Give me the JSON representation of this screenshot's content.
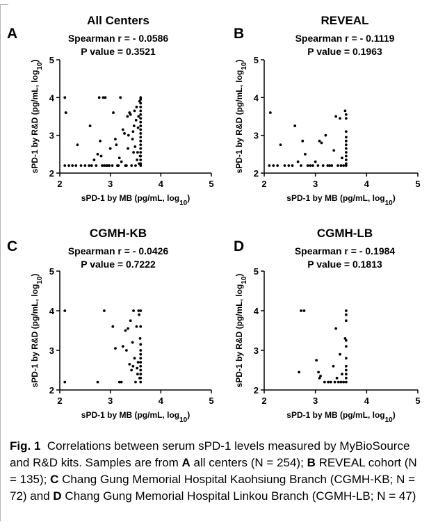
{
  "panels": [
    {
      "letter": "A",
      "title": "All Centers",
      "stat": "Spearman r = - 0.0586",
      "pvalue": "P value = 0.3521"
    },
    {
      "letter": "B",
      "title": "REVEAL",
      "stat": "Spearman r = - 0.1119",
      "pvalue": "P value = 0.1963"
    },
    {
      "letter": "C",
      "title": "CGMH-KB",
      "stat": "Spearman r = - 0.0426",
      "pvalue": "P value = 0.7222"
    },
    {
      "letter": "D",
      "title": "CGMH-LB",
      "stat": "Spearman r = - 0.1984",
      "pvalue": "P value = 0.1813"
    }
  ],
  "caption": {
    "label": "Fig. 1",
    "intro": "Correlations between serum sPD-1 levels measured by MyBioSource and R&D kits. Samples are from",
    "parts": [
      {
        "letter": "A",
        "text": " all centers (N = 254);"
      },
      {
        "letter": "B",
        "text": " REVEAL cohort (N = 135);"
      },
      {
        "letter": "C",
        "text": " Chang Gung Memorial Hospital Kaohsiung Branch (CGMH-KB; N = 72) and"
      },
      {
        "letter": "D",
        "text": " Chang Gung Memorial Hospital Linkou Branch (CGMH-LB; N = 47)"
      }
    ]
  },
  "chart_data": [
    {
      "type": "scatter",
      "title": "All Centers",
      "annotations": [
        "Spearman r = - 0.0586",
        "P value = 0.3521"
      ],
      "xlabel": "sPD-1 by MB (pg/mL, log10)",
      "ylabel": "sPD-1 by R&D (pg/mL, log10)",
      "xlim": [
        2,
        5
      ],
      "ylim": [
        2,
        5
      ],
      "xticks": [
        "2",
        "3",
        "4",
        "5"
      ],
      "yticks": [
        "2",
        "3",
        "4",
        "5"
      ],
      "points": [
        [
          2.1,
          4.0
        ],
        [
          2.12,
          3.6
        ],
        [
          2.1,
          2.2
        ],
        [
          2.18,
          2.2
        ],
        [
          2.25,
          2.2
        ],
        [
          2.32,
          2.2
        ],
        [
          2.35,
          2.75
        ],
        [
          2.42,
          2.2
        ],
        [
          2.5,
          2.2
        ],
        [
          2.58,
          2.2
        ],
        [
          2.6,
          3.25
        ],
        [
          2.63,
          2.2
        ],
        [
          2.68,
          2.35
        ],
        [
          2.72,
          2.2
        ],
        [
          2.75,
          2.5
        ],
        [
          2.78,
          4.0
        ],
        [
          2.8,
          2.85
        ],
        [
          2.82,
          2.45
        ],
        [
          2.84,
          2.2
        ],
        [
          2.86,
          4.0
        ],
        [
          2.88,
          2.2
        ],
        [
          2.9,
          4.0
        ],
        [
          2.92,
          2.2
        ],
        [
          2.95,
          2.2
        ],
        [
          2.98,
          2.2
        ],
        [
          3.0,
          2.65
        ],
        [
          3.04,
          2.2
        ],
        [
          3.06,
          3.6
        ],
        [
          3.1,
          2.9
        ],
        [
          3.12,
          2.75
        ],
        [
          3.14,
          2.2
        ],
        [
          3.16,
          2.2
        ],
        [
          3.18,
          2.4
        ],
        [
          3.2,
          4.0
        ],
        [
          3.22,
          2.3
        ],
        [
          3.25,
          3.15
        ],
        [
          3.28,
          3.05
        ],
        [
          3.3,
          2.2
        ],
        [
          3.32,
          2.2
        ],
        [
          3.34,
          3.5
        ],
        [
          3.35,
          2.65
        ],
        [
          3.36,
          3.0
        ],
        [
          3.38,
          3.6
        ],
        [
          3.4,
          3.55
        ],
        [
          3.42,
          2.2
        ],
        [
          3.44,
          2.9
        ],
        [
          3.45,
          3.1
        ],
        [
          3.46,
          2.55
        ],
        [
          3.47,
          3.25
        ],
        [
          3.48,
          3.65
        ],
        [
          3.49,
          2.7
        ],
        [
          3.5,
          2.2
        ],
        [
          3.51,
          3.4
        ],
        [
          3.52,
          3.75
        ],
        [
          3.53,
          2.35
        ],
        [
          3.54,
          2.55
        ],
        [
          3.55,
          3.2
        ],
        [
          3.56,
          3.5
        ],
        [
          3.57,
          2.25
        ],
        [
          3.58,
          3.9
        ],
        [
          3.59,
          2.45
        ],
        [
          3.6,
          4.0
        ],
        [
          3.6,
          3.95
        ],
        [
          3.6,
          3.85
        ],
        [
          3.6,
          3.75
        ],
        [
          3.6,
          3.65
        ],
        [
          3.6,
          3.55
        ],
        [
          3.6,
          3.45
        ],
        [
          3.6,
          3.35
        ],
        [
          3.6,
          3.25
        ],
        [
          3.6,
          3.15
        ],
        [
          3.6,
          3.05
        ],
        [
          3.6,
          2.95
        ],
        [
          3.6,
          2.85
        ],
        [
          3.6,
          2.75
        ],
        [
          3.6,
          2.65
        ],
        [
          3.6,
          2.55
        ],
        [
          3.6,
          2.45
        ],
        [
          3.6,
          2.35
        ],
        [
          3.6,
          2.25
        ],
        [
          3.6,
          2.2
        ]
      ]
    },
    {
      "type": "scatter",
      "title": "REVEAL",
      "annotations": [
        "Spearman r = - 0.1119",
        "P value = 0.1963"
      ],
      "xlabel": "sPD-1 by MB (pg/mL, log10)",
      "ylabel": "sPD-1 by R&D (pg/mL, log10)",
      "xlim": [
        2,
        5
      ],
      "ylim": [
        2,
        5
      ],
      "xticks": [
        "2",
        "3",
        "4",
        "5"
      ],
      "yticks": [
        "2",
        "3",
        "4",
        "5"
      ],
      "points": [
        [
          2.12,
          3.6
        ],
        [
          2.1,
          2.2
        ],
        [
          2.18,
          2.2
        ],
        [
          2.26,
          2.2
        ],
        [
          2.32,
          2.75
        ],
        [
          2.4,
          2.2
        ],
        [
          2.48,
          2.2
        ],
        [
          2.55,
          2.2
        ],
        [
          2.6,
          3.25
        ],
        [
          2.66,
          2.3
        ],
        [
          2.72,
          2.2
        ],
        [
          2.75,
          2.85
        ],
        [
          2.8,
          2.5
        ],
        [
          2.85,
          2.2
        ],
        [
          2.9,
          2.2
        ],
        [
          2.95,
          2.2
        ],
        [
          3.0,
          2.3
        ],
        [
          3.05,
          2.2
        ],
        [
          3.08,
          2.85
        ],
        [
          3.12,
          2.8
        ],
        [
          3.15,
          2.2
        ],
        [
          3.2,
          3.0
        ],
        [
          3.24,
          2.2
        ],
        [
          3.28,
          2.2
        ],
        [
          3.32,
          2.2
        ],
        [
          3.36,
          2.6
        ],
        [
          3.4,
          3.5
        ],
        [
          3.44,
          2.2
        ],
        [
          3.48,
          3.45
        ],
        [
          3.5,
          2.2
        ],
        [
          3.52,
          2.4
        ],
        [
          3.55,
          2.2
        ],
        [
          3.58,
          3.65
        ],
        [
          3.6,
          3.55
        ],
        [
          3.6,
          3.45
        ],
        [
          3.6,
          3.1
        ],
        [
          3.6,
          2.95
        ],
        [
          3.6,
          2.85
        ],
        [
          3.6,
          2.75
        ],
        [
          3.6,
          2.65
        ],
        [
          3.6,
          2.55
        ],
        [
          3.6,
          2.45
        ],
        [
          3.6,
          2.35
        ],
        [
          3.6,
          2.25
        ],
        [
          3.6,
          2.2
        ]
      ]
    },
    {
      "type": "scatter",
      "title": "CGMH-KB",
      "annotations": [
        "Spearman r = - 0.0426",
        "P value = 0.7222"
      ],
      "xlabel": "sPD-1 by MB (pg/mL, log10)",
      "ylabel": "sPD-1 by R&D (pg/mL, log10)",
      "xlim": [
        2,
        5
      ],
      "ylim": [
        2,
        5
      ],
      "xticks": [
        "2",
        "3",
        "4",
        "5"
      ],
      "yticks": [
        "2",
        "3",
        "4",
        "5"
      ],
      "points": [
        [
          2.1,
          4.0
        ],
        [
          2.1,
          2.2
        ],
        [
          2.75,
          2.2
        ],
        [
          2.88,
          4.0
        ],
        [
          3.05,
          3.6
        ],
        [
          3.1,
          3.05
        ],
        [
          3.18,
          2.2
        ],
        [
          3.22,
          2.2
        ],
        [
          3.25,
          3.1
        ],
        [
          3.3,
          3.5
        ],
        [
          3.32,
          3.0
        ],
        [
          3.35,
          3.55
        ],
        [
          3.38,
          2.65
        ],
        [
          3.4,
          3.75
        ],
        [
          3.42,
          2.5
        ],
        [
          3.44,
          3.2
        ],
        [
          3.45,
          2.6
        ],
        [
          3.46,
          4.0
        ],
        [
          3.48,
          2.8
        ],
        [
          3.5,
          2.2
        ],
        [
          3.52,
          3.6
        ],
        [
          3.53,
          2.55
        ],
        [
          3.54,
          2.4
        ],
        [
          3.55,
          2.7
        ],
        [
          3.56,
          4.0
        ],
        [
          3.57,
          3.9
        ],
        [
          3.58,
          2.3
        ],
        [
          3.59,
          3.3
        ],
        [
          3.6,
          4.0
        ],
        [
          3.6,
          3.6
        ],
        [
          3.6,
          3.15
        ],
        [
          3.6,
          3.0
        ],
        [
          3.6,
          2.9
        ],
        [
          3.6,
          2.8
        ],
        [
          3.6,
          2.7
        ],
        [
          3.6,
          2.6
        ],
        [
          3.6,
          2.5
        ],
        [
          3.6,
          2.4
        ],
        [
          3.6,
          2.3
        ],
        [
          3.6,
          2.2
        ]
      ]
    },
    {
      "type": "scatter",
      "title": "CGMH-LB",
      "annotations": [
        "Spearman r = - 0.1984",
        "P value = 0.1813"
      ],
      "xlabel": "sPD-1 by MB (pg/mL, log10)",
      "ylabel": "sPD-1 by R&D (pg/mL, log10)",
      "xlim": [
        2,
        5
      ],
      "ylim": [
        2,
        5
      ],
      "xticks": [
        "2",
        "3",
        "4",
        "5"
      ],
      "yticks": [
        "2",
        "3",
        "4",
        "5"
      ],
      "points": [
        [
          2.68,
          2.45
        ],
        [
          2.72,
          4.0
        ],
        [
          2.78,
          4.0
        ],
        [
          3.02,
          2.75
        ],
        [
          3.06,
          2.45
        ],
        [
          3.08,
          2.3
        ],
        [
          3.1,
          2.35
        ],
        [
          3.18,
          2.2
        ],
        [
          3.25,
          2.2
        ],
        [
          3.3,
          2.2
        ],
        [
          3.35,
          2.6
        ],
        [
          3.38,
          2.2
        ],
        [
          3.4,
          3.55
        ],
        [
          3.42,
          2.3
        ],
        [
          3.45,
          2.2
        ],
        [
          3.48,
          2.9
        ],
        [
          3.5,
          2.2
        ],
        [
          3.52,
          2.4
        ],
        [
          3.55,
          2.2
        ],
        [
          3.58,
          3.3
        ],
        [
          3.6,
          4.0
        ],
        [
          3.6,
          3.9
        ],
        [
          3.6,
          3.75
        ],
        [
          3.6,
          3.25
        ],
        [
          3.6,
          3.1
        ],
        [
          3.6,
          2.8
        ],
        [
          3.6,
          2.6
        ],
        [
          3.6,
          2.5
        ],
        [
          3.6,
          2.4
        ],
        [
          3.6,
          2.3
        ],
        [
          3.6,
          2.2
        ]
      ]
    }
  ]
}
